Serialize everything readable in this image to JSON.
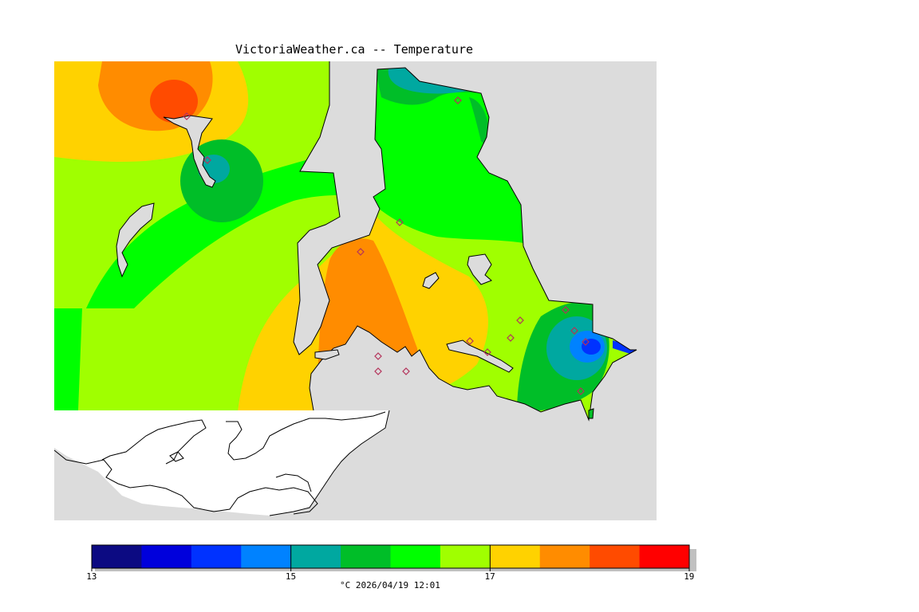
{
  "title": "VictoriaWeather.ca -- Temperature",
  "legend": {
    "min": 13,
    "max": 19,
    "ticks": [
      {
        "value": 13,
        "label": "13"
      },
      {
        "value": 15,
        "label": "15"
      },
      {
        "value": 17,
        "label": "17"
      },
      {
        "value": 19,
        "label": "19"
      }
    ],
    "colors": [
      "#0c0a82",
      "#0000dc",
      "#0032ff",
      "#0082ff",
      "#00a8a0",
      "#00be28",
      "#00ff00",
      "#a0ff00",
      "#ffd200",
      "#ff8c00",
      "#ff4b00",
      "#ff0000"
    ],
    "caption": "°C  2026/04/19 12:01"
  },
  "colors": {
    "water": "#dcdcdc",
    "outside_land": "#ffffff",
    "coast": "#000000",
    "station_marker": "#b4325a"
  },
  "stations": 16
}
